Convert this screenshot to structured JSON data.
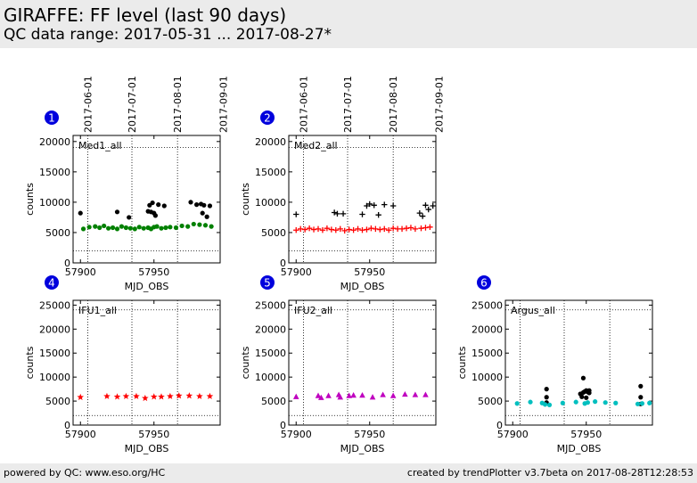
{
  "header": {
    "title": "GIRAFFE: FF level (last 90 days)",
    "subtitle": "QC data range: 2017-05-31 ... 2017-08-27*"
  },
  "footer": {
    "left": "powered by QC: www.eso.org/HC",
    "right": "created by trendPlotter v3.7beta on 2017-08-28T12:28:53"
  },
  "colors": {
    "black": "#000000",
    "green": "#008000",
    "red": "#ff0000",
    "magenta": "#bf00bf",
    "cyan": "#00bfbf",
    "badge": "#0000dd"
  },
  "chart_data": [
    {
      "type": "scatter",
      "id": 1,
      "label": "Med1_all",
      "xlabel": "MJD_OBS",
      "ylabel": "counts",
      "xlim": [
        57895,
        57995
      ],
      "ylim": [
        0,
        21000
      ],
      "yticks": [
        0,
        5000,
        10000,
        15000,
        20000
      ],
      "xticks": [
        57900,
        57950
      ],
      "ref_lines_y": [
        2000,
        19000
      ],
      "date_ticks": [
        {
          "mjd": 57905,
          "label": "2017-06-01"
        },
        {
          "mjd": 57935,
          "label": "2017-07-01"
        },
        {
          "mjd": 57966,
          "label": "2017-08-01"
        },
        {
          "mjd": 57997,
          "label": "2017-09-01"
        }
      ],
      "series": [
        {
          "marker": "dot",
          "color": "#000000",
          "x": [
            57900,
            57925,
            57933,
            57946,
            57947,
            57948,
            57949,
            57950,
            57951,
            57953,
            57957,
            57975,
            57979,
            57982,
            57983,
            57984,
            57986,
            57988
          ],
          "y": [
            8200,
            8400,
            7500,
            8500,
            9500,
            8400,
            9900,
            8200,
            7800,
            9600,
            9400,
            10000,
            9600,
            9700,
            8200,
            9500,
            7600,
            9400
          ]
        },
        {
          "marker": "dot",
          "color": "#008000",
          "x": [
            57902,
            57906,
            57910,
            57913,
            57916,
            57919,
            57922,
            57925,
            57928,
            57931,
            57934,
            57937,
            57940,
            57943,
            57946,
            57948,
            57950,
            57952,
            57955,
            57958,
            57961,
            57965,
            57969,
            57973,
            57977,
            57981,
            57985,
            57989
          ],
          "y": [
            5600,
            5900,
            6000,
            5800,
            6100,
            5700,
            5800,
            5600,
            6000,
            5800,
            5700,
            5600,
            5900,
            5700,
            5800,
            5600,
            5900,
            6000,
            5700,
            5800,
            5900,
            5800,
            6100,
            6000,
            6400,
            6300,
            6200,
            6000
          ]
        }
      ]
    },
    {
      "type": "scatter",
      "id": 2,
      "label": "Med2_all",
      "xlabel": "MJD_OBS",
      "ylabel": "counts",
      "xlim": [
        57895,
        57995
      ],
      "ylim": [
        0,
        21000
      ],
      "yticks": [
        0,
        5000,
        10000,
        15000,
        20000
      ],
      "xticks": [
        57900,
        57950
      ],
      "ref_lines_y": [
        2000,
        19000
      ],
      "date_ticks": [
        {
          "mjd": 57905,
          "label": "2017-06-01"
        },
        {
          "mjd": 57935,
          "label": "2017-07-01"
        },
        {
          "mjd": 57966,
          "label": "2017-08-01"
        },
        {
          "mjd": 57997,
          "label": "2017-09-01"
        }
      ],
      "series": [
        {
          "marker": "plus",
          "color": "#000000",
          "x": [
            57900,
            57926,
            57928,
            57932,
            57945,
            57948,
            57950,
            57953,
            57956,
            57960,
            57966,
            57984,
            57986,
            57988,
            57990,
            57993
          ],
          "y": [
            8000,
            8300,
            8100,
            8100,
            8000,
            9400,
            9700,
            9500,
            7900,
            9600,
            9400,
            8200,
            7700,
            9500,
            8800,
            9400
          ]
        },
        {
          "marker": "plus",
          "color": "#ff0000",
          "x": [
            57900,
            57903,
            57906,
            57909,
            57912,
            57915,
            57918,
            57921,
            57924,
            57927,
            57930,
            57933,
            57936,
            57939,
            57942,
            57945,
            57948,
            57951,
            57954,
            57957,
            57960,
            57963,
            57966,
            57969,
            57972,
            57975,
            57978,
            57981,
            57985,
            57988,
            57991
          ],
          "y": [
            5400,
            5600,
            5500,
            5700,
            5500,
            5600,
            5400,
            5700,
            5500,
            5400,
            5600,
            5300,
            5500,
            5400,
            5600,
            5400,
            5500,
            5700,
            5600,
            5500,
            5600,
            5400,
            5700,
            5600,
            5600,
            5700,
            5800,
            5600,
            5700,
            5800,
            5900
          ]
        }
      ]
    },
    {
      "type": "scatter",
      "id": 4,
      "label": "IFU1_all",
      "xlabel": "MJD_OBS",
      "ylabel": "counts",
      "xlim": [
        57895,
        57995
      ],
      "ylim": [
        0,
        26000
      ],
      "yticks": [
        0,
        5000,
        10000,
        15000,
        20000,
        25000
      ],
      "xticks": [
        57900,
        57950
      ],
      "ref_lines_y": [
        2000,
        24000
      ],
      "series": [
        {
          "marker": "star",
          "color": "#ff0000",
          "x": [
            57900,
            57918,
            57925,
            57931,
            57938,
            57944,
            57950,
            57955,
            57961,
            57967,
            57974,
            57981,
            57988
          ],
          "y": [
            5800,
            6000,
            5900,
            6000,
            6000,
            5600,
            5900,
            5900,
            6000,
            6100,
            6100,
            6000,
            6000
          ]
        }
      ]
    },
    {
      "type": "scatter",
      "id": 5,
      "label": "IFU2_all",
      "xlabel": "MJD_OBS",
      "ylabel": "counts",
      "xlim": [
        57895,
        57995
      ],
      "ylim": [
        0,
        26000
      ],
      "yticks": [
        0,
        5000,
        10000,
        15000,
        20000,
        25000
      ],
      "xticks": [
        57900,
        57950
      ],
      "ref_lines_y": [
        2000,
        24000
      ],
      "series": [
        {
          "marker": "triangle",
          "color": "#bf00bf",
          "x": [
            57900,
            57915,
            57917,
            57922,
            57929,
            57930,
            57936,
            57939,
            57945,
            57952,
            57959,
            57966,
            57974,
            57981,
            57988
          ],
          "y": [
            5900,
            6100,
            5700,
            6100,
            6300,
            5800,
            6100,
            6200,
            6200,
            5800,
            6300,
            6100,
            6400,
            6300,
            6300
          ]
        }
      ]
    },
    {
      "type": "scatter",
      "id": 6,
      "label": "Argus_all",
      "xlabel": "MJD_OBS",
      "ylabel": "counts",
      "xlim": [
        57895,
        57995
      ],
      "ylim": [
        0,
        26000
      ],
      "yticks": [
        0,
        5000,
        10000,
        15000,
        20000,
        25000
      ],
      "xticks": [
        57900,
        57950
      ],
      "ref_lines_y": [
        2000,
        24000
      ],
      "series": [
        {
          "marker": "dot",
          "color": "#000000",
          "x": [
            57923,
            57923,
            57923,
            57946,
            57947,
            57948,
            57949,
            57950,
            57951,
            57952,
            57948,
            57950,
            57952,
            57987,
            57987,
            57987
          ],
          "y": [
            7500,
            5800,
            4700,
            6500,
            5900,
            6800,
            7000,
            7200,
            6900,
            7200,
            9800,
            5700,
            6700,
            8100,
            5800,
            4400
          ]
        },
        {
          "marker": "dot",
          "color": "#00bfbf",
          "x": [
            57903,
            57912,
            57920,
            57922,
            57925,
            57934,
            57943,
            57949,
            57951,
            57956,
            57963,
            57970,
            57985,
            57988,
            57993
          ],
          "y": [
            4500,
            4800,
            4600,
            4300,
            4200,
            4600,
            4800,
            4500,
            4700,
            4900,
            4700,
            4600,
            4400,
            4500,
            4600
          ]
        }
      ]
    }
  ]
}
